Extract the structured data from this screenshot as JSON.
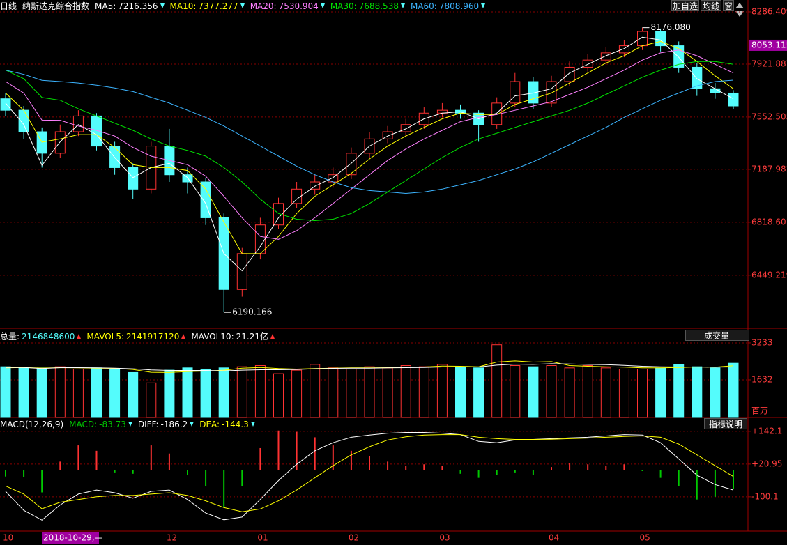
{
  "header": {
    "period": "日线",
    "name": "纳斯达克综合指数",
    "buttons": [
      "加自选",
      "均线",
      "窗"
    ]
  },
  "chart_data": [
    {
      "type": "candlestick",
      "categories": [
        "10",
        null,
        null,
        null,
        null,
        null,
        null,
        null,
        null,
        "12",
        null,
        null,
        null,
        null,
        "01",
        null,
        null,
        null,
        null,
        "02",
        null,
        null,
        null,
        null,
        "03",
        null,
        null,
        null,
        null,
        null,
        "04",
        null,
        null,
        null,
        null,
        "05",
        null,
        null,
        null,
        null,
        null
      ],
      "cursor_label": "2018-10-29,—",
      "up_color": "#ff3232",
      "down_color": "#54fcfc",
      "candles": [
        [
          7680,
          7720,
          7560,
          7600
        ],
        [
          7600,
          7630,
          7400,
          7450
        ],
        [
          7450,
          7480,
          7200,
          7300
        ],
        [
          7300,
          7500,
          7270,
          7450
        ],
        [
          7450,
          7600,
          7420,
          7560
        ],
        [
          7560,
          7580,
          7320,
          7350
        ],
        [
          7350,
          7380,
          7150,
          7200
        ],
        [
          7200,
          7230,
          6980,
          7050
        ],
        [
          7050,
          7380,
          7020,
          7350
        ],
        [
          7350,
          7470,
          7100,
          7150
        ],
        [
          7150,
          7200,
          7020,
          7100
        ],
        [
          7100,
          7130,
          6800,
          6850
        ],
        [
          6850,
          6880,
          6190.166,
          6350
        ],
        [
          6350,
          6640,
          6300,
          6600
        ],
        [
          6600,
          6850,
          6560,
          6800
        ],
        [
          6800,
          6990,
          6770,
          6950
        ],
        [
          6950,
          7100,
          6920,
          7050
        ],
        [
          7050,
          7150,
          7010,
          7100
        ],
        [
          7100,
          7200,
          7060,
          7150
        ],
        [
          7150,
          7340,
          7120,
          7300
        ],
        [
          7300,
          7450,
          7270,
          7400
        ],
        [
          7400,
          7490,
          7370,
          7450
        ],
        [
          7450,
          7540,
          7420,
          7500
        ],
        [
          7500,
          7620,
          7470,
          7580
        ],
        [
          7580,
          7650,
          7550,
          7600
        ],
        [
          7600,
          7640,
          7540,
          7580
        ],
        [
          7580,
          7600,
          7380,
          7500
        ],
        [
          7500,
          7690,
          7470,
          7650
        ],
        [
          7650,
          7860,
          7620,
          7800
        ],
        [
          7800,
          7830,
          7610,
          7650
        ],
        [
          7650,
          7840,
          7620,
          7800
        ],
        [
          7800,
          7940,
          7770,
          7900
        ],
        [
          7900,
          7990,
          7870,
          7950
        ],
        [
          7950,
          8040,
          7920,
          8000
        ],
        [
          8000,
          8090,
          7970,
          8050
        ],
        [
          8050,
          8176.08,
          8020,
          8150
        ],
        [
          8150,
          8170,
          8010,
          8050
        ],
        [
          8050,
          8080,
          7860,
          7900
        ],
        [
          7900,
          7930,
          7700,
          7750
        ],
        [
          7750,
          7790,
          7680,
          7720
        ],
        [
          7720,
          7740,
          7610,
          7630
        ]
      ],
      "high_label": "8176.080",
      "low_label": "6190.166",
      "last_price": 8053.115,
      "ma": [
        {
          "name": "MA5:",
          "color": "#ffffff",
          "cursor_value": 7216.356,
          "arrow": "down",
          "values": [
            7650,
            7500,
            7216.356,
            7380,
            7500,
            7430,
            7270,
            7130,
            7200,
            7230,
            7130,
            6950,
            6600,
            6480,
            6650,
            6850,
            6980,
            7070,
            7130,
            7230,
            7350,
            7420,
            7470,
            7540,
            7580,
            7590,
            7540,
            7580,
            7700,
            7720,
            7750,
            7860,
            7920,
            7980,
            8030,
            8110,
            8090,
            7970,
            7820,
            7750,
            7680
          ]
        },
        {
          "name": "MA10:",
          "color": "#ffff00",
          "cursor_value": 7377.277,
          "arrow": "down",
          "values": [
            7720,
            7600,
            7377.277,
            7400,
            7430,
            7430,
            7340,
            7220,
            7200,
            7200,
            7180,
            7050,
            6820,
            6600,
            6600,
            6720,
            6880,
            7000,
            7080,
            7160,
            7260,
            7350,
            7420,
            7480,
            7540,
            7580,
            7570,
            7570,
            7640,
            7680,
            7720,
            7790,
            7860,
            7930,
            7980,
            8050,
            8080,
            8030,
            7940,
            7840,
            7750
          ]
        },
        {
          "name": "MA20:",
          "color": "#ff80ff",
          "cursor_value": 7530.904,
          "arrow": "down",
          "values": [
            7800,
            7720,
            7530.904,
            7530,
            7490,
            7460,
            7420,
            7340,
            7280,
            7250,
            7220,
            7140,
            7000,
            6850,
            6720,
            6700,
            6760,
            6850,
            6950,
            7050,
            7150,
            7250,
            7330,
            7400,
            7460,
            7520,
            7550,
            7570,
            7600,
            7630,
            7660,
            7710,
            7760,
            7820,
            7880,
            7950,
            8000,
            8020,
            7980,
            7920,
            7860
          ]
        },
        {
          "name": "MA30:",
          "color": "#00e600",
          "cursor_value": 7688.538,
          "arrow": "down",
          "values": [
            7880,
            7820,
            7688.538,
            7670,
            7610,
            7560,
            7510,
            7460,
            7400,
            7350,
            7320,
            7280,
            7200,
            7100,
            6980,
            6880,
            6840,
            6830,
            6840,
            6880,
            6950,
            7030,
            7110,
            7190,
            7270,
            7340,
            7400,
            7440,
            7480,
            7520,
            7560,
            7600,
            7650,
            7710,
            7770,
            7830,
            7880,
            7920,
            7940,
            7940,
            7920
          ]
        },
        {
          "name": "MA60:",
          "color": "#3cb4ff",
          "cursor_value": {
            "value": 7808.96,
            "label": "7808.960"
          },
          "arrow": "down",
          "values": [
            7880,
            7850,
            7808.96,
            7800,
            7790,
            7775,
            7755,
            7730,
            7690,
            7650,
            7600,
            7550,
            7490,
            7420,
            7350,
            7280,
            7210,
            7150,
            7100,
            7060,
            7040,
            7030,
            7020,
            7030,
            7050,
            7080,
            7110,
            7150,
            7190,
            7240,
            7300,
            7360,
            7420,
            7480,
            7550,
            7610,
            7670,
            7720,
            7770,
            7800,
            7810
          ]
        }
      ],
      "ylim": [
        6084,
        8330
      ],
      "yticks": [
        8286.409,
        7921.887,
        7552.505,
        7187.983,
        6818.601,
        6449.219
      ],
      "grid": true
    },
    {
      "type": "volume",
      "indicator": "成交量",
      "unit": "百万",
      "total": {
        "name": "总量:",
        "value": 2146848600,
        "arrow": "up"
      },
      "values": [
        2200,
        2180,
        2146.8486,
        2200,
        2100,
        2150,
        2100,
        1950,
        1500,
        2050,
        2150,
        2100,
        2150,
        2200,
        2250,
        1900,
        2050,
        2300,
        2150,
        2100,
        2200,
        2150,
        2250,
        2200,
        2300,
        2200,
        2150,
        3150,
        2250,
        2200,
        2250,
        2150,
        2250,
        2150,
        2100,
        2100,
        2150,
        2300,
        2200,
        2150,
        2350
      ],
      "series": [
        {
          "name": "MAVOL5:",
          "color": "#ffff00",
          "cursor_value": 2141917120,
          "arrow": "up",
          "values": [
            2150,
            2170,
            2141.91712,
            2160,
            2150,
            2140,
            2130,
            2080,
            1960,
            1950,
            1990,
            2010,
            2050,
            2140,
            2170,
            2120,
            2100,
            2120,
            2140,
            2150,
            2150,
            2160,
            2180,
            2190,
            2230,
            2220,
            2200,
            2400,
            2450,
            2400,
            2420,
            2250,
            2220,
            2200,
            2180,
            2150,
            2150,
            2170,
            2190,
            2180,
            2240
          ]
        },
        {
          "name": "MAVOL10:",
          "color": "#ffffff",
          "cursor_value": {
            "value": 2121000000,
            "label": "21.21亿"
          },
          "arrow": "up",
          "values": [
            2170,
            2170,
            2121,
            2160,
            2160,
            2155,
            2140,
            2110,
            2060,
            2040,
            2040,
            2040,
            2020,
            2050,
            2070,
            2070,
            2080,
            2110,
            2130,
            2140,
            2140,
            2150,
            2160,
            2170,
            2190,
            2190,
            2190,
            2270,
            2310,
            2300,
            2330,
            2320,
            2300,
            2290,
            2260,
            2220,
            2200,
            2190,
            2190,
            2180,
            2190
          ]
        }
      ],
      "ylim": [
        0,
        3806
      ],
      "yticks": [
        3233,
        1632
      ],
      "grid": true
    },
    {
      "type": "macd",
      "title": "MACD(12,26,9)",
      "button": "指标说明",
      "histogram": {
        "name": "MACD:",
        "color": "#00c800",
        "up_color": "#ff3232",
        "down_color": "#00c800",
        "cursor_value": -83.73,
        "arrow": "down",
        "values": [
          -25,
          -28,
          -83.73,
          30,
          90,
          70,
          -10,
          -15,
          90,
          60,
          -20,
          -60,
          -140,
          -60,
          80,
          145,
          140,
          120,
          90,
          70,
          50,
          30,
          15,
          20,
          15,
          -15,
          -30,
          -20,
          -10,
          -20,
          10,
          25,
          20,
          15,
          20,
          -5,
          -30,
          -60,
          -110,
          -100,
          -70
        ]
      },
      "series": [
        {
          "name": "DIFF:",
          "color": "#ffffff",
          "cursor_value": -186.2,
          "arrow": "down",
          "values": [
            -80,
            -150,
            -186.2,
            -130,
            -90,
            -75,
            -85,
            -105,
            -80,
            -75,
            -110,
            -160,
            -185,
            -175,
            -110,
            -40,
            20,
            70,
            100,
            120,
            128,
            135,
            138,
            138,
            135,
            130,
            105,
            100,
            110,
            112,
            115,
            118,
            120,
            125,
            130,
            128,
            100,
            40,
            -20,
            -55,
            -75
          ]
        },
        {
          "name": "DEA:",
          "color": "#ffff00",
          "cursor_value": -144.3,
          "arrow": "down",
          "values": [
            -60,
            -90,
            -144.3,
            -120,
            -110,
            -100,
            -95,
            -95,
            -90,
            -85,
            -95,
            -115,
            -140,
            -155,
            -145,
            -115,
            -75,
            -30,
            15,
            55,
            85,
            110,
            122,
            128,
            130,
            130,
            120,
            115,
            112,
            112,
            113,
            115,
            117,
            120,
            123,
            125,
            120,
            95,
            55,
            15,
            -25
          ]
        }
      ],
      "ylim": [
        -221.6,
        190.7
      ],
      "yticks": [
        {
          "value": 142.1,
          "label": "+142.1"
        },
        {
          "value": 20.95,
          "label": "+20.95"
        },
        -100.1
      ],
      "grid": true
    }
  ]
}
